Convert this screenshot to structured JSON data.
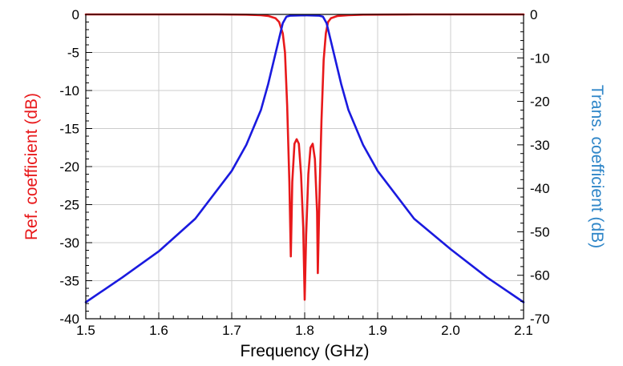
{
  "chart_data": {
    "type": "line",
    "xlabel": "Frequency (GHz)",
    "ylabel_left": "Ref. coefficient (dB)",
    "ylabel_right": "Trans. coefficient (dB)",
    "xlim": [
      1.5,
      2.1
    ],
    "ylim_left": [
      -40,
      0
    ],
    "ylim_right": [
      -70,
      0
    ],
    "x_ticks": [
      "1.5",
      "1.6",
      "1.7",
      "1.8",
      "1.9",
      "2.0",
      "2.1"
    ],
    "y_left_ticks": [
      "0",
      "-5",
      "-10",
      "-15",
      "-20",
      "-25",
      "-30",
      "-35",
      "-40"
    ],
    "y_right_ticks": [
      "0",
      "-10",
      "-20",
      "-30",
      "-40",
      "-50",
      "-60",
      "-70"
    ],
    "grid": true,
    "colors": {
      "ref": "#e8191b",
      "trans": "#1a1adf",
      "ref_label": "#e8191b",
      "trans_label": "#2f86c8",
      "grid": "#cccccc"
    },
    "series": [
      {
        "axis": "left",
        "color": "#e8191b",
        "points": [
          [
            1.5,
            0
          ],
          [
            1.68,
            0
          ],
          [
            1.72,
            -0.03
          ],
          [
            1.74,
            -0.1
          ],
          [
            1.75,
            -0.2
          ],
          [
            1.76,
            -0.5
          ],
          [
            1.765,
            -1.0
          ],
          [
            1.77,
            -2.5
          ],
          [
            1.773,
            -5
          ],
          [
            1.776,
            -12
          ],
          [
            1.779,
            -22
          ],
          [
            1.781,
            -31.8
          ],
          [
            1.783,
            -22
          ],
          [
            1.786,
            -17
          ],
          [
            1.789,
            -16.4
          ],
          [
            1.792,
            -17
          ],
          [
            1.795,
            -21
          ],
          [
            1.798,
            -28
          ],
          [
            1.8,
            -37.5
          ],
          [
            1.802,
            -29
          ],
          [
            1.805,
            -21
          ],
          [
            1.808,
            -17.5
          ],
          [
            1.811,
            -17
          ],
          [
            1.814,
            -19
          ],
          [
            1.817,
            -26
          ],
          [
            1.818,
            -34
          ],
          [
            1.82,
            -25
          ],
          [
            1.823,
            -14
          ],
          [
            1.826,
            -6
          ],
          [
            1.829,
            -2.5
          ],
          [
            1.832,
            -1.0
          ],
          [
            1.836,
            -0.5
          ],
          [
            1.845,
            -0.2
          ],
          [
            1.86,
            -0.1
          ],
          [
            1.88,
            -0.03
          ],
          [
            1.95,
            0
          ],
          [
            2.1,
            0
          ]
        ]
      },
      {
        "axis": "right",
        "color": "#1a1adf",
        "points": [
          [
            1.5,
            -66.2
          ],
          [
            1.55,
            -60.5
          ],
          [
            1.6,
            -54.5
          ],
          [
            1.65,
            -47
          ],
          [
            1.7,
            -36
          ],
          [
            1.72,
            -30
          ],
          [
            1.74,
            -22
          ],
          [
            1.75,
            -16
          ],
          [
            1.76,
            -9
          ],
          [
            1.765,
            -5.5
          ],
          [
            1.77,
            -2
          ],
          [
            1.775,
            -0.5
          ],
          [
            1.78,
            -0.3
          ],
          [
            1.8,
            -0.2
          ],
          [
            1.82,
            -0.3
          ],
          [
            1.825,
            -0.5
          ],
          [
            1.83,
            -2
          ],
          [
            1.835,
            -5.5
          ],
          [
            1.84,
            -9
          ],
          [
            1.85,
            -16
          ],
          [
            1.86,
            -22
          ],
          [
            1.88,
            -30
          ],
          [
            1.9,
            -36
          ],
          [
            1.95,
            -47
          ],
          [
            2.0,
            -54
          ],
          [
            2.05,
            -60.5
          ],
          [
            2.1,
            -66.2
          ]
        ]
      }
    ]
  }
}
